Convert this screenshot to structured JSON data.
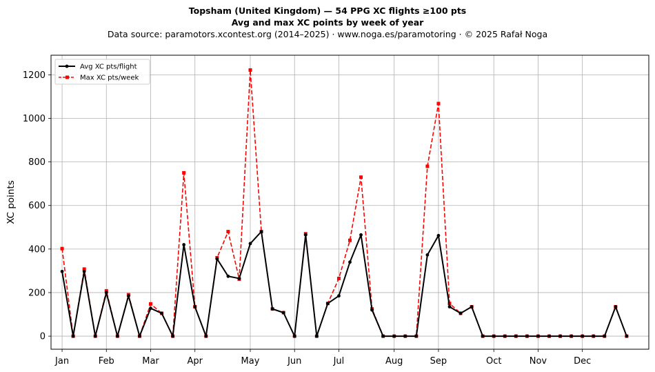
{
  "chart_data": {
    "type": "line",
    "title": "Topsham (United Kingdom)  —  54 PPG XC flights ≥100 pts",
    "subtitle": "Avg and max XC points by week of year",
    "source_line": "Data source: paramotors.xcontest.org (2014–2025)  ·  www.noga.es/paramotoring  ·  © 2025 Rafał Noga",
    "xlabel": "",
    "ylabel": "XC points",
    "xlim": [
      0,
      54
    ],
    "ylim": [
      -60,
      1290
    ],
    "grid": true,
    "legend_position": "top-left",
    "x_ticks": [
      {
        "label": "Jan",
        "week": 1
      },
      {
        "label": "Feb",
        "week": 5
      },
      {
        "label": "Mar",
        "week": 9
      },
      {
        "label": "Apr",
        "week": 13
      },
      {
        "label": "May",
        "week": 18
      },
      {
        "label": "Jun",
        "week": 22
      },
      {
        "label": "Jul",
        "week": 26
      },
      {
        "label": "Aug",
        "week": 31
      },
      {
        "label": "Sep",
        "week": 35
      },
      {
        "label": "Oct",
        "week": 40
      },
      {
        "label": "Nov",
        "week": 44
      },
      {
        "label": "Dec",
        "week": 48
      }
    ],
    "y_ticks": [
      0,
      200,
      400,
      600,
      800,
      1000,
      1200
    ],
    "x": [
      1,
      2,
      3,
      4,
      5,
      6,
      7,
      8,
      9,
      10,
      11,
      12,
      13,
      14,
      15,
      16,
      17,
      18,
      19,
      20,
      21,
      22,
      23,
      24,
      25,
      26,
      27,
      28,
      29,
      30,
      31,
      32,
      33,
      34,
      35,
      36,
      37,
      38,
      39,
      40,
      41,
      42,
      43,
      44,
      45,
      46,
      47,
      48,
      49,
      50,
      51,
      52
    ],
    "series": [
      {
        "name": "Avg XC pts/flight",
        "color": "#000000",
        "style": "solid",
        "marker": "circle",
        "values": [
          297,
          0,
          297,
          0,
          200,
          0,
          185,
          0,
          128,
          105,
          0,
          420,
          135,
          0,
          355,
          275,
          265,
          425,
          480,
          125,
          108,
          0,
          465,
          0,
          150,
          185,
          340,
          465,
          120,
          0,
          0,
          0,
          0,
          373,
          462,
          135,
          105,
          135,
          0,
          0,
          0,
          0,
          0,
          0,
          0,
          0,
          0,
          0,
          0,
          0,
          135,
          0
        ]
      },
      {
        "name": "Max XC pts/week",
        "color": "#ff0000",
        "style": "dashed",
        "marker": "square",
        "values": [
          402,
          0,
          308,
          0,
          208,
          0,
          190,
          0,
          148,
          105,
          0,
          750,
          135,
          0,
          360,
          480,
          262,
          1222,
          480,
          125,
          108,
          0,
          470,
          0,
          150,
          265,
          440,
          730,
          125,
          0,
          0,
          0,
          0,
          780,
          1068,
          150,
          105,
          135,
          0,
          0,
          0,
          0,
          0,
          0,
          0,
          0,
          0,
          0,
          0,
          0,
          135,
          0
        ]
      }
    ]
  }
}
